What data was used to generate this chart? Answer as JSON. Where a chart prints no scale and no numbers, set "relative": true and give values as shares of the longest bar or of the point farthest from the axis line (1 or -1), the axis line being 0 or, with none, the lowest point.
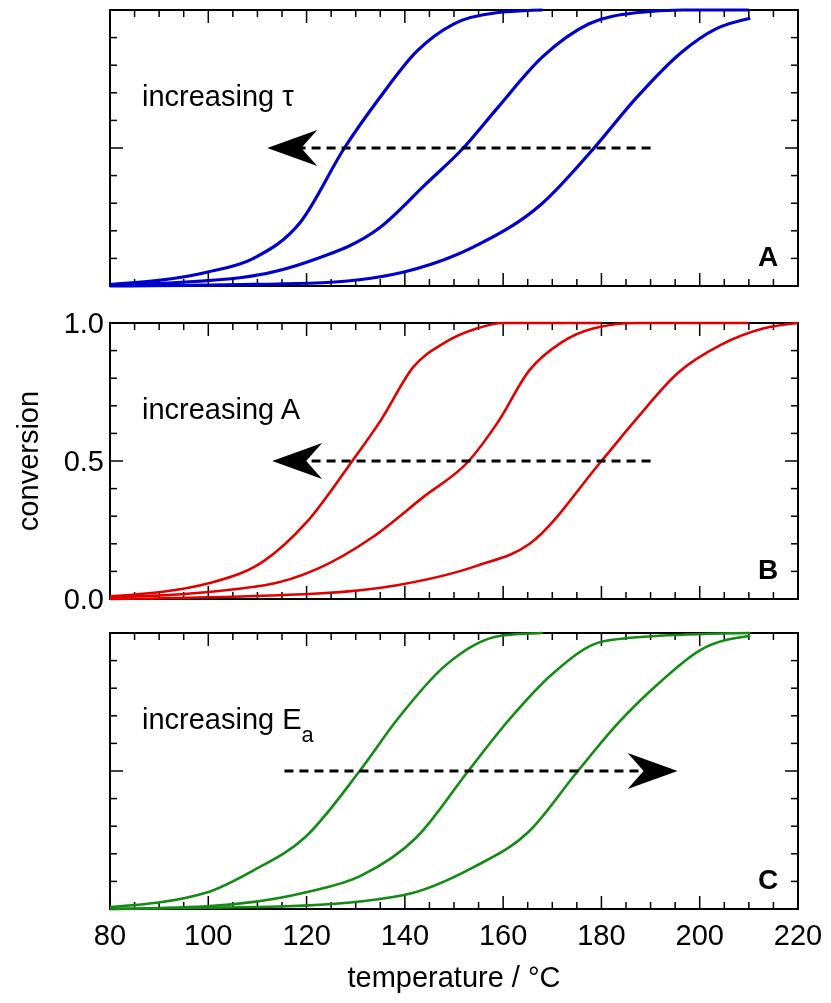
{
  "chart_data": [
    {
      "type": "line",
      "xlim": [
        80,
        220
      ],
      "relative": true,
      "tick_labels": false,
      "line_style": "solid",
      "marker": "none",
      "xticks": [
        80,
        {
          "value": 85,
          "label": null
        },
        {
          "value": 90,
          "label": null
        },
        {
          "value": 95,
          "label": null
        },
        100,
        {
          "value": 105,
          "label": null
        },
        {
          "value": 110,
          "label": null
        },
        {
          "value": 115,
          "label": null
        },
        120,
        {
          "value": 125,
          "label": null
        },
        {
          "value": 130,
          "label": null
        },
        {
          "value": 135,
          "label": null
        },
        140,
        {
          "value": 145,
          "label": null
        },
        {
          "value": 150,
          "label": null
        },
        {
          "value": 155,
          "label": null
        },
        160,
        {
          "value": 165,
          "label": null
        },
        {
          "value": 170,
          "label": null
        },
        {
          "value": 175,
          "label": null
        },
        180,
        {
          "value": 185,
          "label": null
        },
        {
          "value": 190,
          "label": null
        },
        {
          "value": 195,
          "label": null
        },
        200,
        {
          "value": 205,
          "label": null
        },
        {
          "value": 210,
          "label": null
        },
        {
          "value": 215,
          "label": null
        },
        220
      ],
      "annotations": [
        "increasing τ",
        "A"
      ],
      "series": [
        {
          "color": "#0000cc",
          "x": [
            80,
            99.7,
            109.2,
            118.7,
            127.7,
            134.8,
            142.4,
            150,
            158.6,
            168
          ],
          "values": [
            0.005,
            0.05,
            0.1,
            0.23,
            0.5,
            0.68,
            0.85,
            0.95,
            0.99,
            1
          ]
        },
        {
          "color": "#0000cc",
          "x": [
            80,
            106.4,
            120.6,
            134.8,
            144.3,
            151.9,
            158.6,
            168,
            177.5,
            187,
            196.5,
            210
          ],
          "values": [
            0.003,
            0.03,
            0.09,
            0.21,
            0.37,
            0.5,
            0.64,
            0.83,
            0.95,
            0.99,
            1,
            1
          ]
        },
        {
          "color": "#0000cc",
          "x": [
            80,
            120.6,
            139.6,
            153.8,
            168,
            178.5,
            187,
            196.5,
            203.1,
            210.3
          ],
          "values": [
            0,
            0.01,
            0.05,
            0.14,
            0.3,
            0.5,
            0.68,
            0.85,
            0.93,
            0.97
          ]
        }
      ]
    },
    {
      "type": "line",
      "xlim": [
        80,
        220
      ],
      "ylim": [
        0,
        1
      ],
      "tick_labels": "y",
      "ylabel": "conversion",
      "line_style": "solid",
      "marker": "none",
      "xticks": [
        80,
        {
          "value": 85,
          "label": null
        },
        {
          "value": 90,
          "label": null
        },
        {
          "value": 95,
          "label": null
        },
        100,
        {
          "value": 105,
          "label": null
        },
        {
          "value": 110,
          "label": null
        },
        {
          "value": 115,
          "label": null
        },
        120,
        {
          "value": 125,
          "label": null
        },
        {
          "value": 130,
          "label": null
        },
        {
          "value": 135,
          "label": null
        },
        140,
        {
          "value": 145,
          "label": null
        },
        {
          "value": 150,
          "label": null
        },
        {
          "value": 155,
          "label": null
        },
        160,
        {
          "value": 165,
          "label": null
        },
        {
          "value": 170,
          "label": null
        },
        {
          "value": 175,
          "label": null
        },
        180,
        {
          "value": 185,
          "label": null
        },
        {
          "value": 190,
          "label": null
        },
        {
          "value": 195,
          "label": null
        },
        200,
        {
          "value": 205,
          "label": null
        },
        {
          "value": 210,
          "label": null
        },
        {
          "value": 215,
          "label": null
        },
        220
      ],
      "yticks": [
        {
          "value": 0,
          "label": "0.0"
        },
        {
          "value": 0.1,
          "label": null
        },
        {
          "value": 0.2,
          "label": null
        },
        {
          "value": 0.3,
          "label": null
        },
        {
          "value": 0.4,
          "label": null
        },
        {
          "value": 0.5,
          "label": "0.5"
        },
        {
          "value": 0.6,
          "label": null
        },
        {
          "value": 0.7,
          "label": null
        },
        {
          "value": 0.8,
          "label": null
        },
        {
          "value": 0.9,
          "label": null
        },
        {
          "value": 1,
          "label": "1.0"
        }
      ],
      "annotations": [
        "increasing A",
        "B"
      ],
      "series": [
        {
          "color": "#e00000",
          "x": [
            80,
            100.7,
            111.5,
            120.1,
            129.3,
            135.2,
            141.7,
            148.2,
            154.6,
            160,
            165.4,
            180
          ],
          "values": [
            0.01,
            0.06,
            0.14,
            0.28,
            0.5,
            0.65,
            0.84,
            0.93,
            0.98,
            1,
            1,
            1
          ]
        },
        {
          "color": "#e00000",
          "x": [
            80,
            111.5,
            122.3,
            133.1,
            143.8,
            153,
            158.9,
            165.4,
            171.9,
            178.3,
            187,
            199.9,
            210
          ],
          "values": [
            0.005,
            0.05,
            0.11,
            0.22,
            0.37,
            0.5,
            0.64,
            0.83,
            0.93,
            0.98,
            1,
            1,
            1
          ]
        },
        {
          "color": "#e00000",
          "x": [
            80,
            122.3,
            138.4,
            154.6,
            165.4,
            180,
            187,
            195.6,
            204.2,
            212.9,
            220
          ],
          "values": [
            0,
            0.02,
            0.05,
            0.12,
            0.2,
            0.5,
            0.65,
            0.82,
            0.92,
            0.98,
            1
          ]
        }
      ]
    },
    {
      "type": "line",
      "xlim": [
        80,
        220
      ],
      "relative": true,
      "tick_labels": "x",
      "xlabel": "temperature / °C",
      "line_style": "solid",
      "marker": "none",
      "xticks": [
        80,
        {
          "value": 85,
          "label": null
        },
        {
          "value": 90,
          "label": null
        },
        {
          "value": 95,
          "label": null
        },
        100,
        {
          "value": 105,
          "label": null
        },
        {
          "value": 110,
          "label": null
        },
        {
          "value": 115,
          "label": null
        },
        120,
        {
          "value": 125,
          "label": null
        },
        {
          "value": 130,
          "label": null
        },
        {
          "value": 135,
          "label": null
        },
        140,
        {
          "value": 145,
          "label": null
        },
        {
          "value": 150,
          "label": null
        },
        {
          "value": 155,
          "label": null
        },
        160,
        {
          "value": 165,
          "label": null
        },
        {
          "value": 170,
          "label": null
        },
        {
          "value": 175,
          "label": null
        },
        180,
        {
          "value": 185,
          "label": null
        },
        {
          "value": 190,
          "label": null
        },
        {
          "value": 195,
          "label": null
        },
        200,
        {
          "value": 205,
          "label": null
        },
        {
          "value": 210,
          "label": null
        },
        {
          "value": 215,
          "label": null
        },
        220
      ],
      "annotations": [
        "increasing E$_{a}$",
        "C"
      ],
      "series": [
        {
          "color": "#138a13",
          "x": [
            80,
            99.7,
            109.2,
            119.7,
            130.8,
            138.6,
            148.1,
            159.5,
            168
          ],
          "values": [
            0.007,
            0.06,
            0.14,
            0.26,
            0.5,
            0.69,
            0.88,
            0.99,
            1
          ]
        },
        {
          "color": "#138a13",
          "x": [
            80,
            99.7,
            119.7,
            131,
            142.4,
            152.9,
            161.4,
            169.9,
            180.4,
            191.8,
            210.3
          ],
          "values": [
            0,
            0.01,
            0.06,
            0.12,
            0.26,
            0.5,
            0.69,
            0.85,
            0.97,
            0.99,
            1
          ]
        },
        {
          "color": "#138a13",
          "x": [
            80,
            115.9,
            139.6,
            153.8,
            165.2,
            175.2,
            183.2,
            191.8,
            200.3,
            210.3
          ],
          "values": [
            0,
            0.01,
            0.05,
            0.15,
            0.28,
            0.5,
            0.67,
            0.82,
            0.94,
            0.99
          ]
        }
      ]
    }
  ]
}
